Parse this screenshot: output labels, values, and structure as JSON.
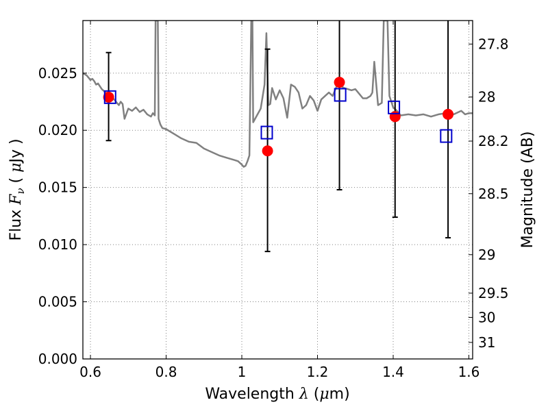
{
  "chart_data": {
    "type": "scatter",
    "xlabel": "Wavelength  λ (μm)",
    "ylabel": "Flux  F_ν  ( μJy )",
    "y2label": "Magnitude (AB)",
    "xlim": [
      0.58,
      1.61
    ],
    "ylim": [
      0.0,
      0.0296
    ],
    "grid": true,
    "grid_style": "dotted",
    "x_ticks": [
      {
        "value": 0.6,
        "label": "0.6"
      },
      {
        "value": 0.8,
        "label": "0.8"
      },
      {
        "value": 1.0,
        "label": "1"
      },
      {
        "value": 1.2,
        "label": "1.2"
      },
      {
        "value": 1.4,
        "label": "1.4"
      },
      {
        "value": 1.6,
        "label": "1.6"
      }
    ],
    "y_ticks": [
      {
        "value": 0.0,
        "label": "0.000"
      },
      {
        "value": 0.005,
        "label": "0.005"
      },
      {
        "value": 0.01,
        "label": "0.010"
      },
      {
        "value": 0.015,
        "label": "0.015"
      },
      {
        "value": 0.02,
        "label": "0.020"
      },
      {
        "value": 0.025,
        "label": "0.025"
      }
    ],
    "y2_ticks": [
      {
        "value": 27.8,
        "label": "27.8"
      },
      {
        "value": 28.0,
        "label": "28"
      },
      {
        "value": 28.2,
        "label": "28.2"
      },
      {
        "value": 28.5,
        "label": "28.5"
      },
      {
        "value": 29.0,
        "label": "29"
      },
      {
        "value": 29.5,
        "label": "29.5"
      },
      {
        "value": 30.0,
        "label": "30"
      },
      {
        "value": 31.0,
        "label": "31"
      }
    ],
    "colors": {
      "model": "#808080",
      "observed": "#ff0000",
      "synthetic": "#0000cc",
      "errorbar": "#000000",
      "grid": "#808080"
    },
    "model_spectrum": {
      "x": [
        0.58,
        0.59,
        0.595,
        0.6,
        0.605,
        0.61,
        0.615,
        0.62,
        0.63,
        0.64,
        0.65,
        0.66,
        0.665,
        0.67,
        0.675,
        0.68,
        0.685,
        0.69,
        0.7,
        0.71,
        0.72,
        0.73,
        0.74,
        0.75,
        0.76,
        0.765,
        0.77,
        0.772,
        0.774,
        0.776,
        0.778,
        0.78,
        0.785,
        0.79,
        0.8,
        0.82,
        0.84,
        0.86,
        0.88,
        0.9,
        0.92,
        0.94,
        0.96,
        0.98,
        0.99,
        1.0,
        1.005,
        1.01,
        1.015,
        1.02,
        1.025,
        1.028,
        1.03,
        1.04,
        1.05,
        1.06,
        1.065,
        1.07,
        1.075,
        1.08,
        1.09,
        1.1,
        1.11,
        1.12,
        1.13,
        1.14,
        1.15,
        1.16,
        1.17,
        1.18,
        1.19,
        1.2,
        1.21,
        1.22,
        1.23,
        1.24,
        1.25,
        1.26,
        1.27,
        1.28,
        1.29,
        1.3,
        1.31,
        1.32,
        1.33,
        1.34,
        1.345,
        1.35,
        1.36,
        1.37,
        1.375,
        1.38,
        1.385,
        1.39,
        1.4,
        1.41,
        1.42,
        1.44,
        1.46,
        1.48,
        1.5,
        1.52,
        1.54,
        1.56,
        1.58,
        1.59,
        1.6,
        1.61
      ],
      "y": [
        0.025,
        0.0248,
        0.0246,
        0.0244,
        0.0245,
        0.0243,
        0.024,
        0.0241,
        0.0236,
        0.0233,
        0.0231,
        0.0228,
        0.0226,
        0.0224,
        0.0222,
        0.0225,
        0.0223,
        0.021,
        0.0219,
        0.0217,
        0.022,
        0.0216,
        0.0218,
        0.0214,
        0.0212,
        0.0215,
        0.0213,
        0.0296,
        0.0296,
        0.0296,
        0.0296,
        0.021,
        0.0205,
        0.0202,
        0.0201,
        0.0197,
        0.0193,
        0.019,
        0.0189,
        0.0184,
        0.0181,
        0.0178,
        0.0176,
        0.0174,
        0.0173,
        0.017,
        0.0168,
        0.0169,
        0.0173,
        0.0178,
        0.0296,
        0.0296,
        0.0207,
        0.0213,
        0.0219,
        0.024,
        0.0285,
        0.0222,
        0.0223,
        0.0237,
        0.0227,
        0.0235,
        0.0228,
        0.0211,
        0.024,
        0.0238,
        0.0233,
        0.0219,
        0.0222,
        0.023,
        0.0226,
        0.0217,
        0.0227,
        0.023,
        0.0233,
        0.023,
        0.0238,
        0.0239,
        0.0237,
        0.0236,
        0.0235,
        0.0236,
        0.0232,
        0.0228,
        0.0228,
        0.023,
        0.0233,
        0.026,
        0.0222,
        0.0224,
        0.0296,
        0.0296,
        0.0296,
        0.023,
        0.022,
        0.0217,
        0.0213,
        0.0214,
        0.0213,
        0.0214,
        0.0212,
        0.0214,
        0.0215,
        0.0214,
        0.0217,
        0.0214,
        0.0215,
        0.0215
      ]
    },
    "observed": {
      "x": [
        0.648,
        1.068,
        1.258,
        1.405,
        1.545
      ],
      "y": [
        0.0229,
        0.0182,
        0.0242,
        0.0212,
        0.0214
      ],
      "yerr_low": [
        0.0191,
        0.0094,
        0.0148,
        0.0124,
        0.0106
      ],
      "yerr_high": [
        0.0268,
        0.0271,
        0.0296,
        0.0296,
        0.0296
      ]
    },
    "synthetic": {
      "x": [
        0.652,
        1.066,
        1.26,
        1.402,
        1.54
      ],
      "y": [
        0.0229,
        0.0198,
        0.0231,
        0.022,
        0.0195
      ]
    }
  }
}
